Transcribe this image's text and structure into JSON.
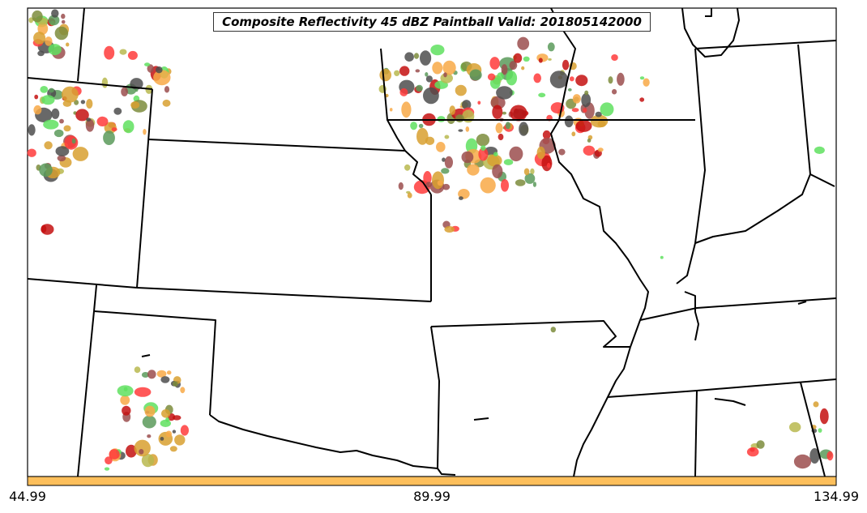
{
  "title": "Composite Reflectivity 45 dBZ Paintball Valid: 201805142000",
  "colorbar": {
    "color": "#fdbf5b",
    "ticks": [
      "44.99",
      "89.99",
      "134.99"
    ]
  },
  "colors": {
    "state_lines": "#000000",
    "paintball_palette": [
      "#ff3b3b",
      "#5a9a5a",
      "#f8a947",
      "#9b4d4d",
      "#4e4e4e",
      "#b8b84f",
      "#5fe05f",
      "#c41010",
      "#d8a030",
      "#7c8c3c"
    ]
  }
}
